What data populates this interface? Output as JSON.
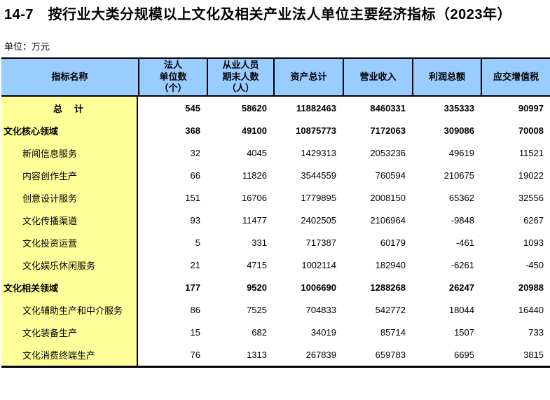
{
  "title": "14-7　按行业大类分规模以上文化及相关产业法人单位主要经济指标（2023年）",
  "unit_label": "单位：万元",
  "colors": {
    "header_bg": "#99CCFF",
    "label_column_bg": "#FFFF99",
    "border": "#000000",
    "text": "#000000",
    "page_bg": "#FFFFFF"
  },
  "table": {
    "columns": [
      "指标名称",
      "法人\n单位数\n（个）",
      "从业人员\n期末人数\n（人）",
      "资产总计",
      "营业收入",
      "利润总额",
      "应交增值税"
    ],
    "rows": [
      {
        "label": "总　计",
        "style": "total",
        "values": [
          545,
          58620,
          11882463,
          8460331,
          335333,
          90997
        ]
      },
      {
        "label": "文化核心领域",
        "style": "section",
        "values": [
          368,
          49100,
          10875773,
          7172063,
          309086,
          70008
        ]
      },
      {
        "label": "新闻信息服务",
        "style": "item",
        "values": [
          32,
          4045,
          1429313,
          2053236,
          49619,
          11521
        ]
      },
      {
        "label": "内容创作生产",
        "style": "item",
        "values": [
          66,
          11826,
          3544559,
          760594,
          210675,
          19022
        ]
      },
      {
        "label": "创意设计服务",
        "style": "item",
        "values": [
          151,
          16706,
          1779895,
          2008150,
          65362,
          32556
        ]
      },
      {
        "label": "文化传播渠道",
        "style": "item",
        "values": [
          93,
          11477,
          2402505,
          2106964,
          -9848,
          6267
        ]
      },
      {
        "label": "文化投资运营",
        "style": "item",
        "values": [
          5,
          331,
          717387,
          60179,
          -461,
          1093
        ]
      },
      {
        "label": "文化娱乐休闲服务",
        "style": "item",
        "values": [
          21,
          4715,
          1002114,
          182940,
          -6261,
          -450
        ]
      },
      {
        "label": "文化相关领域",
        "style": "section",
        "values": [
          177,
          9520,
          1006690,
          1288268,
          26247,
          20988
        ]
      },
      {
        "label": "文化辅助生产和中介服务",
        "style": "item",
        "values": [
          86,
          7525,
          704833,
          542772,
          18044,
          16440
        ]
      },
      {
        "label": "文化装备生产",
        "style": "item",
        "values": [
          15,
          682,
          34019,
          85714,
          1507,
          733
        ]
      },
      {
        "label": "文化消费终端生产",
        "style": "item",
        "values": [
          76,
          1313,
          267839,
          659783,
          6695,
          3815
        ]
      }
    ]
  }
}
